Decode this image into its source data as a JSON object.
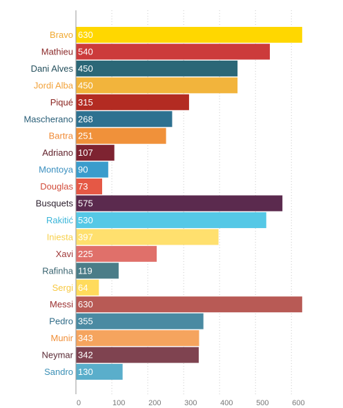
{
  "chart_data": {
    "type": "bar",
    "orientation": "horizontal",
    "title": "",
    "xlabel": "",
    "ylabel": "",
    "xlim": [
      0,
      650
    ],
    "x_ticks": [
      0,
      100,
      200,
      300,
      400,
      500,
      600
    ],
    "x_tick_labels": [
      "0",
      "100",
      "200",
      "300",
      "400",
      "500",
      "600"
    ],
    "grid": "vertical-dotted",
    "bars": [
      {
        "label": "Bravo",
        "value": 630,
        "value_label": "630",
        "color": "#ffd700",
        "label_color": "#f0a830"
      },
      {
        "label": "Mathieu",
        "value": 540,
        "value_label": "540",
        "color": "#cc3b3b",
        "label_color": "#8b2a2a"
      },
      {
        "label": "Dani Alves",
        "value": 450,
        "value_label": "450",
        "color": "#2b6777",
        "label_color": "#244f5c"
      },
      {
        "label": "Jordi Alba",
        "value": 450,
        "value_label": "450",
        "color": "#f2b43c",
        "label_color": "#f2a23a"
      },
      {
        "label": "Piqué",
        "value": 315,
        "value_label": "315",
        "color": "#b32b22",
        "label_color": "#8a2520"
      },
      {
        "label": "Mascherano",
        "value": 268,
        "value_label": "268",
        "color": "#2e7190",
        "label_color": "#2a5f78"
      },
      {
        "label": "Bartra",
        "value": 251,
        "value_label": "251",
        "color": "#f0913a",
        "label_color": "#f08a35"
      },
      {
        "label": "Adriano",
        "value": 107,
        "value_label": "107",
        "color": "#7e2331",
        "label_color": "#5e1e28"
      },
      {
        "label": "Montoya",
        "value": 90,
        "value_label": "90",
        "color": "#3a9ccc",
        "label_color": "#3a8fbf"
      },
      {
        "label": "Douglas",
        "value": 73,
        "value_label": "73",
        "color": "#e55845",
        "label_color": "#d24c3a"
      },
      {
        "label": "Busquets",
        "value": 575,
        "value_label": "575",
        "color": "#5b2a4e",
        "label_color": "#2e2230"
      },
      {
        "label": "Rakitić",
        "value": 530,
        "value_label": "530",
        "color": "#55c8e6",
        "label_color": "#3ab5d9"
      },
      {
        "label": "Iniesta",
        "value": 397,
        "value_label": "397",
        "color": "#ffe06e",
        "label_color": "#f7d04a"
      },
      {
        "label": "Xavi",
        "value": 225,
        "value_label": "225",
        "color": "#e0706a",
        "label_color": "#a03a3a"
      },
      {
        "label": "Rafinha",
        "value": 119,
        "value_label": "119",
        "color": "#4b7d88",
        "label_color": "#3a6470"
      },
      {
        "label": "Sergi",
        "value": 64,
        "value_label": "64",
        "color": "#ffdb5c",
        "label_color": "#f7c840"
      },
      {
        "label": "Messi",
        "value": 630,
        "value_label": "630",
        "color": "#b85a55",
        "label_color": "#9a2e2e"
      },
      {
        "label": "Pedro",
        "value": 355,
        "value_label": "355",
        "color": "#4a8aa2",
        "label_color": "#2e6a86"
      },
      {
        "label": "Munir",
        "value": 343,
        "value_label": "343",
        "color": "#f5a45e",
        "label_color": "#f08f38"
      },
      {
        "label": "Neymar",
        "value": 342,
        "value_label": "342",
        "color": "#7f4350",
        "label_color": "#5a2a35"
      },
      {
        "label": "Sandro",
        "value": 130,
        "value_label": "130",
        "color": "#5aaecb",
        "label_color": "#3a8fb5"
      }
    ]
  }
}
